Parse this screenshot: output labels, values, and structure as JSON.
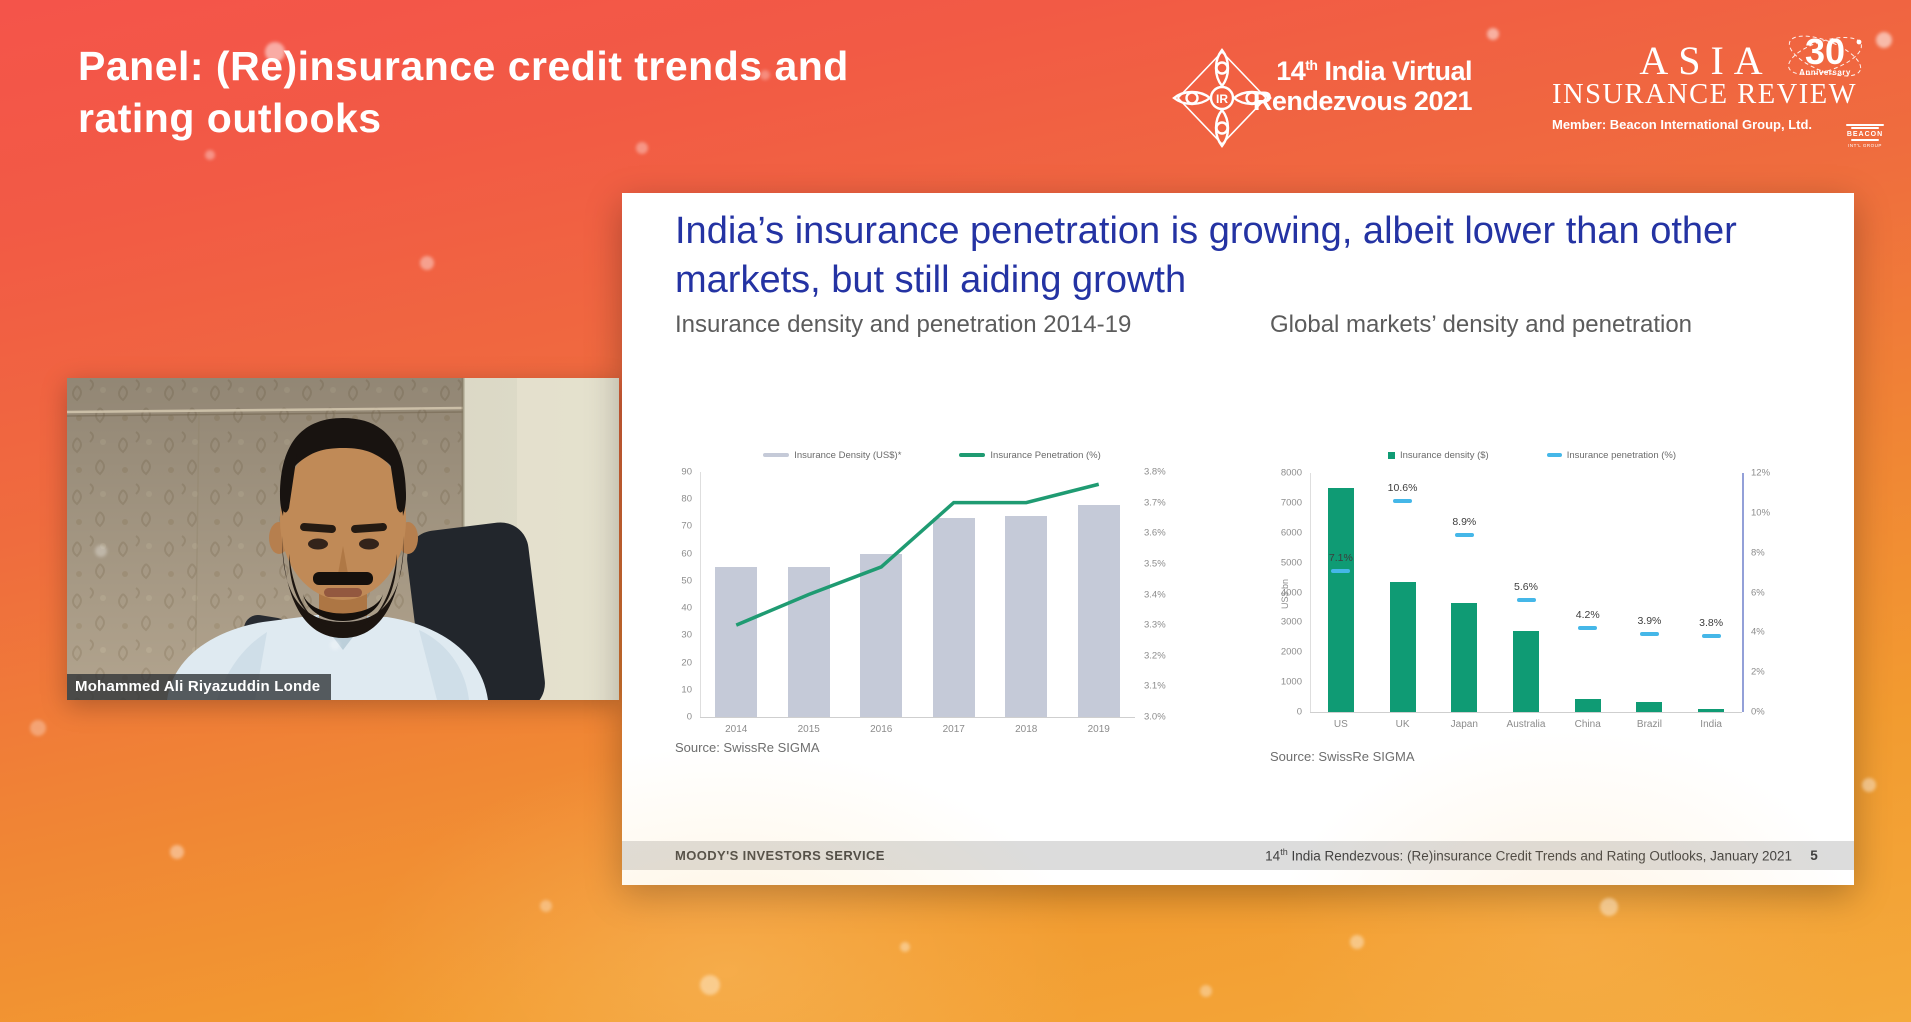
{
  "header": {
    "title": "Panel: (Re)insurance credit trends and rating outlooks",
    "event_logo": {
      "monogram": "IR",
      "line1_num": "14",
      "line1_sup": "th",
      "line1_rest": " India Virtual",
      "line2": "Rendezvous 2021"
    },
    "air_logo": {
      "word1": "Asia",
      "word2": "Insurance Review",
      "badge_num": "30",
      "badge_text": "Anniversary",
      "member_line": "Member: Beacon International Group, Ltd.",
      "beacon_name": "BEACON",
      "beacon_sub": "INT'L GROUP"
    }
  },
  "video": {
    "name_label": "Mohammed Ali Riyazuddin Londe"
  },
  "slide": {
    "title": "India’s insurance penetration is growing, albeit lower than other markets, but still aiding growth",
    "source_left": "Source: SwissRe SIGMA",
    "source_right": "Source: SwissRe SIGMA",
    "footer": {
      "brand": "MOODY'S INVESTORS SERVICE",
      "deck_num": "14",
      "deck_sup": "th",
      "deck_rest": " India Rendezvous: (Re)insurance Credit Trends and Rating Outlooks, January 2021",
      "page": "5"
    }
  },
  "chart_data": [
    {
      "type": "bar",
      "title": "Insurance density and penetration 2014-19",
      "categories": [
        "2014",
        "2015",
        "2016",
        "2017",
        "2018",
        "2019"
      ],
      "series": [
        {
          "name": "Insurance Density (US$)*",
          "type": "bar",
          "axis": "left",
          "values": [
            55,
            55,
            60,
            73,
            74,
            78
          ],
          "color": "#c5cad8"
        },
        {
          "name": "Insurance Penetration (%)",
          "type": "line",
          "axis": "right",
          "values": [
            3.3,
            3.4,
            3.49,
            3.7,
            3.7,
            3.76
          ],
          "color": "#1f9b72"
        }
      ],
      "left_axis": {
        "min": 0,
        "max": 90,
        "step": 10
      },
      "right_axis": {
        "min": 3.0,
        "max": 3.8,
        "step": 0.1,
        "format": "percent1"
      },
      "grid": false,
      "legend_position": "top"
    },
    {
      "type": "bar",
      "title": "Global markets’ density and penetration",
      "categories": [
        "US",
        "UK",
        "Japan",
        "Australia",
        "China",
        "Brazil",
        "India"
      ],
      "series": [
        {
          "name": "Insurance density ($)",
          "type": "bar",
          "axis": "left",
          "values": [
            7500,
            4350,
            3650,
            2700,
            430,
            330,
            90
          ],
          "color": "#0f9b74"
        },
        {
          "name": "Insurance penetration (%)",
          "type": "marker",
          "axis": "right",
          "values": [
            7.1,
            10.6,
            8.9,
            5.6,
            4.2,
            3.9,
            3.8
          ],
          "labels": [
            "7.1%",
            "10.6%",
            "8.9%",
            "5.6%",
            "4.2%",
            "3.9%",
            "3.8%"
          ],
          "color": "#45b7e8"
        }
      ],
      "left_axis": {
        "min": 0,
        "max": 8000,
        "step": 1000,
        "label": "US$ bn"
      },
      "right_axis": {
        "min": 0,
        "max": 12,
        "step": 2,
        "format": "percent0"
      },
      "grid": false,
      "legend_position": "top"
    }
  ]
}
